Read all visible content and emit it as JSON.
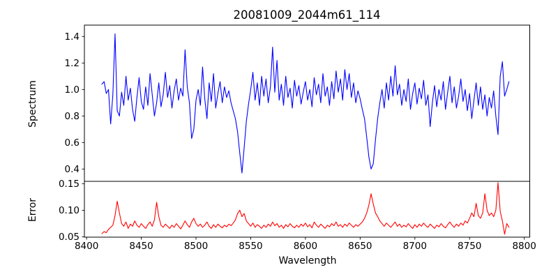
{
  "title": "20081009_2044m61_114",
  "chart_data": {
    "type": "line",
    "title": "20081009_2044m61_114",
    "xlabel": "Wavelength",
    "grid": false,
    "legend": "none",
    "xlim": [
      8398,
      8805
    ],
    "xticks": [
      8400,
      8450,
      8500,
      8550,
      8600,
      8650,
      8700,
      8750,
      8800
    ],
    "xtick_labels": [
      "8400",
      "8450",
      "8500",
      "8550",
      "8600",
      "8650",
      "8700",
      "8750",
      "8800"
    ],
    "x": [
      8414,
      8416,
      8418,
      8420,
      8422,
      8424,
      8426,
      8428,
      8430,
      8432,
      8434,
      8436,
      8438,
      8440,
      8442,
      8444,
      8446,
      8448,
      8450,
      8452,
      8454,
      8456,
      8458,
      8460,
      8462,
      8464,
      8466,
      8468,
      8470,
      8472,
      8474,
      8476,
      8478,
      8480,
      8482,
      8484,
      8486,
      8488,
      8490,
      8492,
      8494,
      8496,
      8498,
      8500,
      8502,
      8504,
      8506,
      8508,
      8510,
      8512,
      8514,
      8516,
      8518,
      8520,
      8522,
      8524,
      8526,
      8528,
      8530,
      8532,
      8534,
      8536,
      8538,
      8540,
      8542,
      8544,
      8546,
      8548,
      8550,
      8552,
      8554,
      8556,
      8558,
      8560,
      8562,
      8564,
      8566,
      8568,
      8570,
      8572,
      8574,
      8576,
      8578,
      8580,
      8582,
      8584,
      8586,
      8588,
      8590,
      8592,
      8594,
      8596,
      8598,
      8600,
      8602,
      8604,
      8606,
      8608,
      8610,
      8612,
      8614,
      8616,
      8618,
      8620,
      8622,
      8624,
      8626,
      8628,
      8630,
      8632,
      8634,
      8636,
      8638,
      8640,
      8642,
      8644,
      8646,
      8648,
      8650,
      8652,
      8654,
      8656,
      8658,
      8660,
      8662,
      8664,
      8666,
      8668,
      8670,
      8672,
      8674,
      8676,
      8678,
      8680,
      8682,
      8684,
      8686,
      8688,
      8690,
      8692,
      8694,
      8696,
      8698,
      8700,
      8702,
      8704,
      8706,
      8708,
      8710,
      8712,
      8714,
      8716,
      8718,
      8720,
      8722,
      8724,
      8726,
      8728,
      8730,
      8732,
      8734,
      8736,
      8738,
      8740,
      8742,
      8744,
      8746,
      8748,
      8750,
      8752,
      8754,
      8756,
      8758,
      8760,
      8762,
      8764,
      8766,
      8768,
      8770,
      8772,
      8774,
      8776,
      8778,
      8780,
      8782,
      8784,
      8786
    ],
    "panels": [
      {
        "name": "Spectrum",
        "ylabel": "Spectrum",
        "color": "#0000ff",
        "ylim": [
          0.307,
          1.486
        ],
        "yticks": [
          0.4,
          0.6,
          0.8,
          1.0,
          1.2,
          1.4
        ],
        "ytick_labels": [
          "0.4",
          "0.6",
          "0.8",
          "1.0",
          "1.2",
          "1.4"
        ],
        "features": "noisy continuum ~0.95; emission-like spike 1.42 @8426; Ca II absorption dips: 0.63 @8496, 0.37 @8542, 0.40 @8660; spikes 1.30 @8490, 1.32 @8570; dip 0.66 @8776",
        "values": [
          1.04,
          1.06,
          0.97,
          1.0,
          0.74,
          0.96,
          1.42,
          0.84,
          0.8,
          0.98,
          0.88,
          1.1,
          0.92,
          1.01,
          0.85,
          0.76,
          0.94,
          1.09,
          0.91,
          0.85,
          1.02,
          0.88,
          1.12,
          0.96,
          0.8,
          0.9,
          1.05,
          0.87,
          0.96,
          1.13,
          0.94,
          1.03,
          0.86,
          0.99,
          1.08,
          0.92,
          1.01,
          0.95,
          1.3,
          1.02,
          0.9,
          0.63,
          0.7,
          0.92,
          1.0,
          0.88,
          1.17,
          0.93,
          0.78,
          1.05,
          0.91,
          1.12,
          0.86,
          0.97,
          1.06,
          0.9,
          1.02,
          0.94,
          0.99,
          0.9,
          0.84,
          0.78,
          0.68,
          0.52,
          0.37,
          0.56,
          0.76,
          0.89,
          1.0,
          1.13,
          0.92,
          1.05,
          0.88,
          1.1,
          0.95,
          1.08,
          0.9,
          1.02,
          1.32,
          0.98,
          1.22,
          0.92,
          1.04,
          0.88,
          1.1,
          0.94,
          1.01,
          0.86,
          1.07,
          0.95,
          1.03,
          0.89,
          0.98,
          1.06,
          0.92,
          1.0,
          0.87,
          1.09,
          0.96,
          1.04,
          0.9,
          1.12,
          0.95,
          1.02,
          0.88,
          1.06,
          0.93,
          1.14,
          0.98,
          1.08,
          0.92,
          1.15,
          1.0,
          1.12,
          0.94,
          1.05,
          0.9,
          0.99,
          0.93,
          0.85,
          0.78,
          0.64,
          0.49,
          0.4,
          0.44,
          0.62,
          0.78,
          0.9,
          1.0,
          0.86,
          1.05,
          0.92,
          1.1,
          0.95,
          1.18,
          0.96,
          1.04,
          0.88,
          1.0,
          0.91,
          1.08,
          0.85,
          0.97,
          1.05,
          0.89,
          1.01,
          0.93,
          1.07,
          0.88,
          0.96,
          0.72,
          0.9,
          1.03,
          0.87,
          1.0,
          0.92,
          1.06,
          0.85,
          0.98,
          1.1,
          0.9,
          1.02,
          0.86,
          0.95,
          1.08,
          0.91,
          1.0,
          0.84,
          0.97,
          0.78,
          0.92,
          1.05,
          0.88,
          1.02,
          0.85,
          0.96,
          0.8,
          0.94,
          0.86,
          0.99,
          0.8,
          0.66,
          1.1,
          1.21,
          0.95,
          1.0,
          1.06
        ]
      },
      {
        "name": "Error",
        "ylabel": "Error",
        "color": "#ff0000",
        "ylim": [
          0.0495,
          0.1544
        ],
        "yticks": [
          0.05,
          0.1,
          0.15
        ],
        "ytick_labels": [
          "0.05",
          "0.10",
          "0.15"
        ],
        "features": "baseline ~0.07; spikes 0.117 @8428, 0.115 @8464, 0.10 @8540, 0.131 @8660, 0.113 @8756, 0.131 @8764, 0.152 @8776",
        "values": [
          0.056,
          0.06,
          0.058,
          0.064,
          0.068,
          0.072,
          0.09,
          0.117,
          0.095,
          0.075,
          0.07,
          0.078,
          0.066,
          0.074,
          0.07,
          0.08,
          0.072,
          0.068,
          0.075,
          0.07,
          0.066,
          0.073,
          0.078,
          0.07,
          0.082,
          0.115,
          0.088,
          0.072,
          0.068,
          0.074,
          0.07,
          0.066,
          0.072,
          0.068,
          0.075,
          0.07,
          0.065,
          0.072,
          0.08,
          0.073,
          0.068,
          0.078,
          0.085,
          0.075,
          0.07,
          0.074,
          0.068,
          0.072,
          0.078,
          0.07,
          0.066,
          0.073,
          0.068,
          0.074,
          0.07,
          0.067,
          0.072,
          0.069,
          0.074,
          0.071,
          0.076,
          0.082,
          0.094,
          0.1,
          0.088,
          0.094,
          0.08,
          0.075,
          0.07,
          0.076,
          0.068,
          0.073,
          0.07,
          0.066,
          0.072,
          0.068,
          0.074,
          0.07,
          0.078,
          0.071,
          0.075,
          0.068,
          0.072,
          0.066,
          0.073,
          0.069,
          0.075,
          0.07,
          0.067,
          0.072,
          0.068,
          0.074,
          0.07,
          0.076,
          0.069,
          0.073,
          0.067,
          0.078,
          0.072,
          0.068,
          0.074,
          0.07,
          0.066,
          0.072,
          0.069,
          0.075,
          0.071,
          0.078,
          0.07,
          0.073,
          0.068,
          0.074,
          0.07,
          0.076,
          0.072,
          0.068,
          0.073,
          0.07,
          0.074,
          0.078,
          0.085,
          0.095,
          0.11,
          0.131,
          0.112,
          0.095,
          0.088,
          0.08,
          0.075,
          0.07,
          0.076,
          0.072,
          0.068,
          0.073,
          0.078,
          0.07,
          0.074,
          0.068,
          0.072,
          0.069,
          0.075,
          0.07,
          0.066,
          0.073,
          0.068,
          0.074,
          0.07,
          0.076,
          0.071,
          0.068,
          0.074,
          0.07,
          0.066,
          0.072,
          0.069,
          0.075,
          0.07,
          0.067,
          0.073,
          0.078,
          0.072,
          0.068,
          0.074,
          0.07,
          0.076,
          0.072,
          0.08,
          0.076,
          0.085,
          0.095,
          0.088,
          0.113,
          0.09,
          0.085,
          0.095,
          0.131,
          0.1,
          0.09,
          0.095,
          0.088,
          0.1,
          0.152,
          0.098,
          0.08,
          0.055,
          0.075,
          0.068
        ]
      }
    ]
  }
}
